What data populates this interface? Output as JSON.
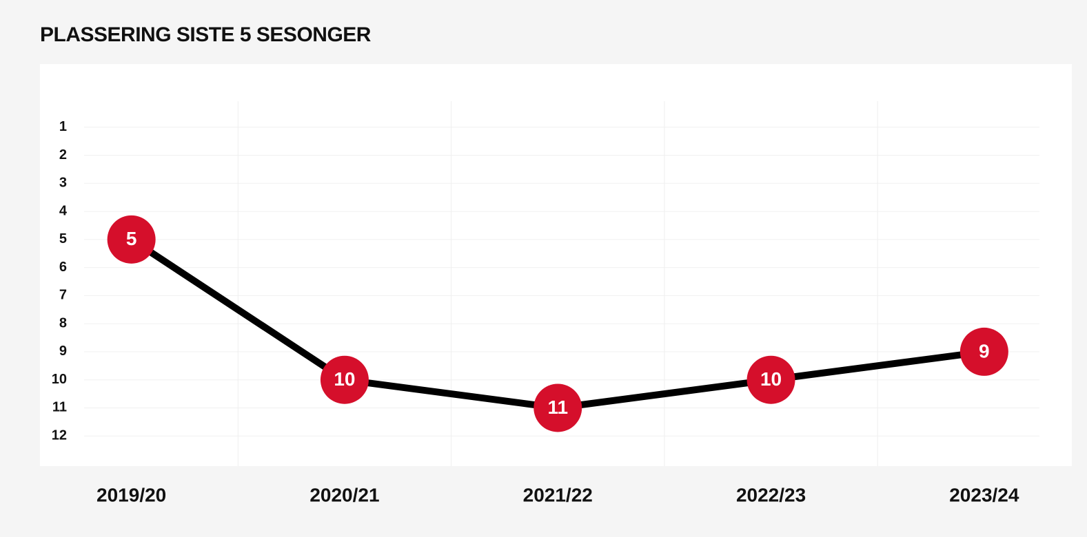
{
  "chart_data": {
    "type": "line",
    "title": "PLASSERING SISTE 5 SESONGER",
    "categories": [
      "2019/20",
      "2020/21",
      "2021/22",
      "2022/23",
      "2023/24"
    ],
    "values": [
      5,
      10,
      11,
      10,
      9
    ],
    "color": "#000000",
    "marker_color": "#d50f2b",
    "ylim": [
      0,
      13
    ],
    "inverted": true,
    "yticks": [
      1,
      2,
      3,
      4,
      5,
      6,
      7,
      8,
      9,
      10,
      11,
      12
    ],
    "grid": true
  }
}
